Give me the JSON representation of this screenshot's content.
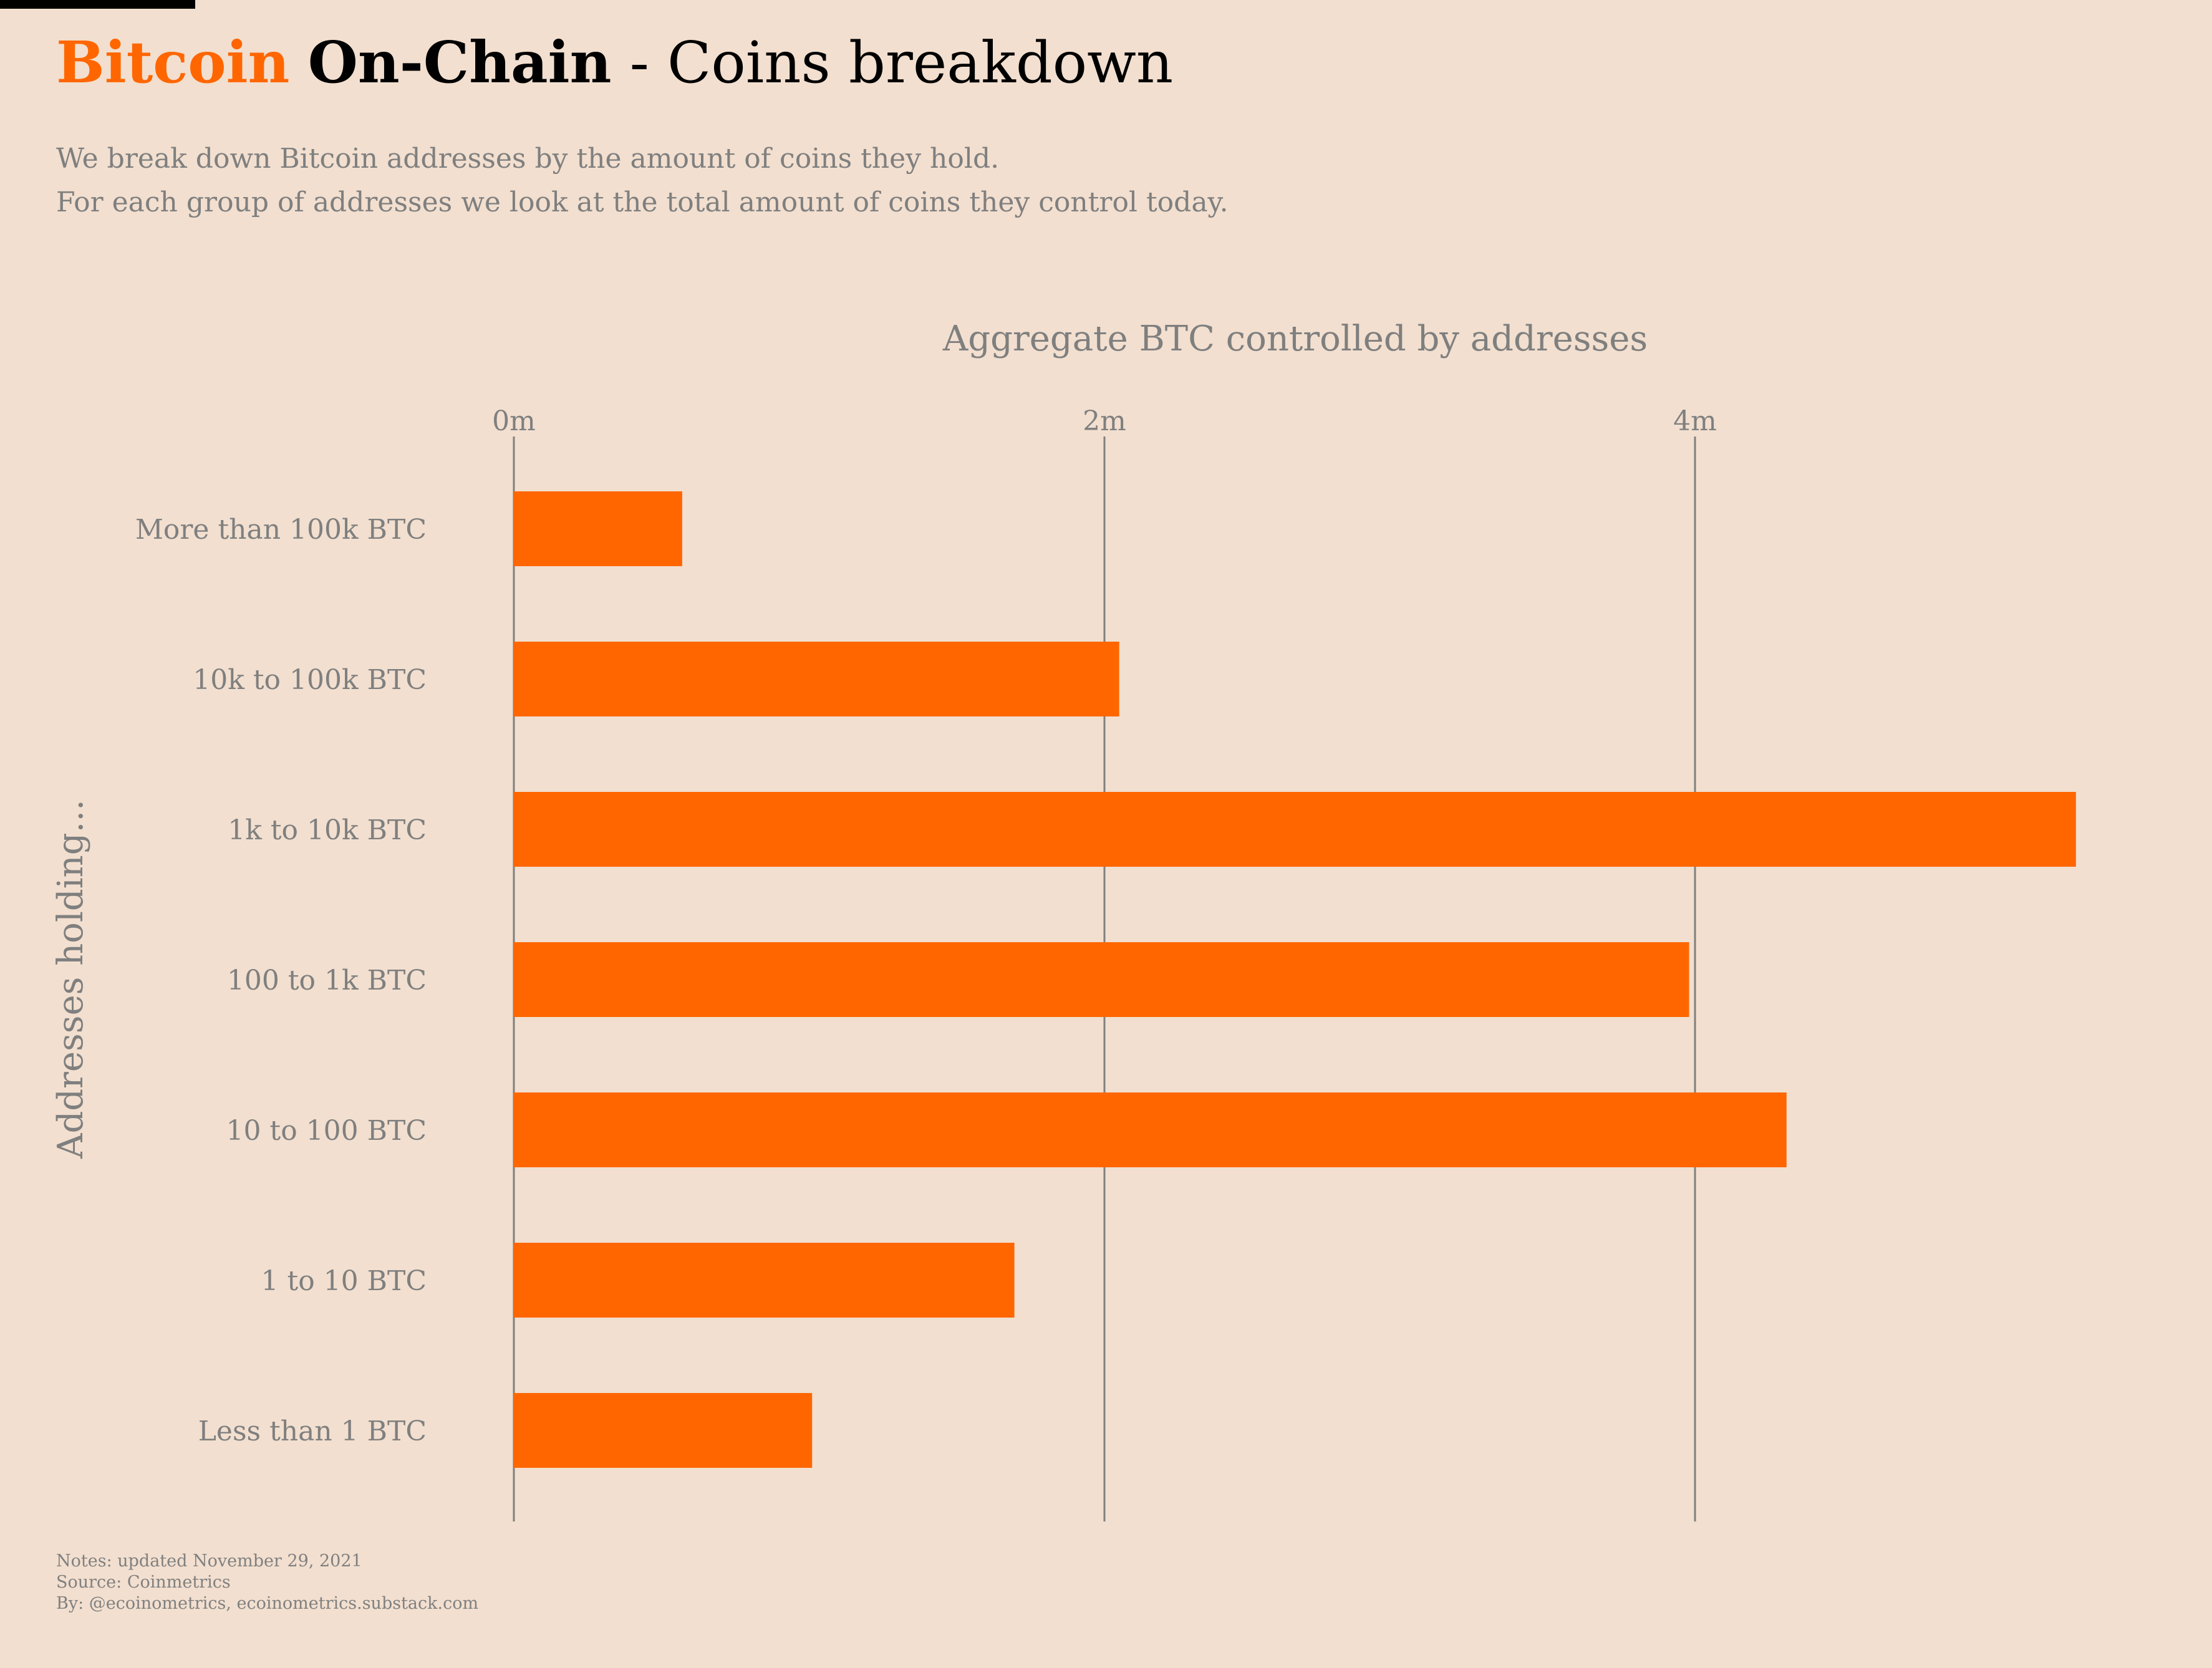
{
  "header": {
    "title_brand": "Bitcoin",
    "title_main": "On-Chain",
    "title_rest": " - Coins breakdown",
    "subtitle_lines": [
      "We break down Bitcoin addresses by the amount of coins they hold.",
      "For each group of addresses we look at the total amount of coins they control today."
    ]
  },
  "chart_data": {
    "type": "bar",
    "orientation": "horizontal",
    "title": "Aggregate BTC controlled by addresses",
    "xlabel": "Aggregate BTC controlled by addresses",
    "ylabel": "Addresses holding...",
    "categories": [
      "More than 100k BTC",
      "10k to 100k BTC",
      "1k to 10k BTC",
      "100 to 1k BTC",
      "10 to 100 BTC",
      "1 to 10 BTC",
      "Less than 1 BTC"
    ],
    "values": [
      570000,
      2050000,
      5290000,
      3980000,
      4310000,
      1695000,
      1010000
    ],
    "units": "BTC",
    "xlim": [
      0,
      5290000
    ],
    "xticks": [
      0,
      2000000,
      4000000
    ],
    "xtick_labels": [
      "0m",
      "2m",
      "4m"
    ],
    "grid": "vertical",
    "axis_position": "top",
    "bar_color": "#ff6600"
  },
  "footer": {
    "notes": [
      "Notes: updated November 29, 2021",
      "Source: Coinmetrics",
      "By: @ecoinometrics, ecoinometrics.substack.com"
    ]
  },
  "colors": {
    "background": "#f2dfcf",
    "accent": "#ff6600",
    "text_muted": "#7f7f7f",
    "gridline": "#808080"
  }
}
